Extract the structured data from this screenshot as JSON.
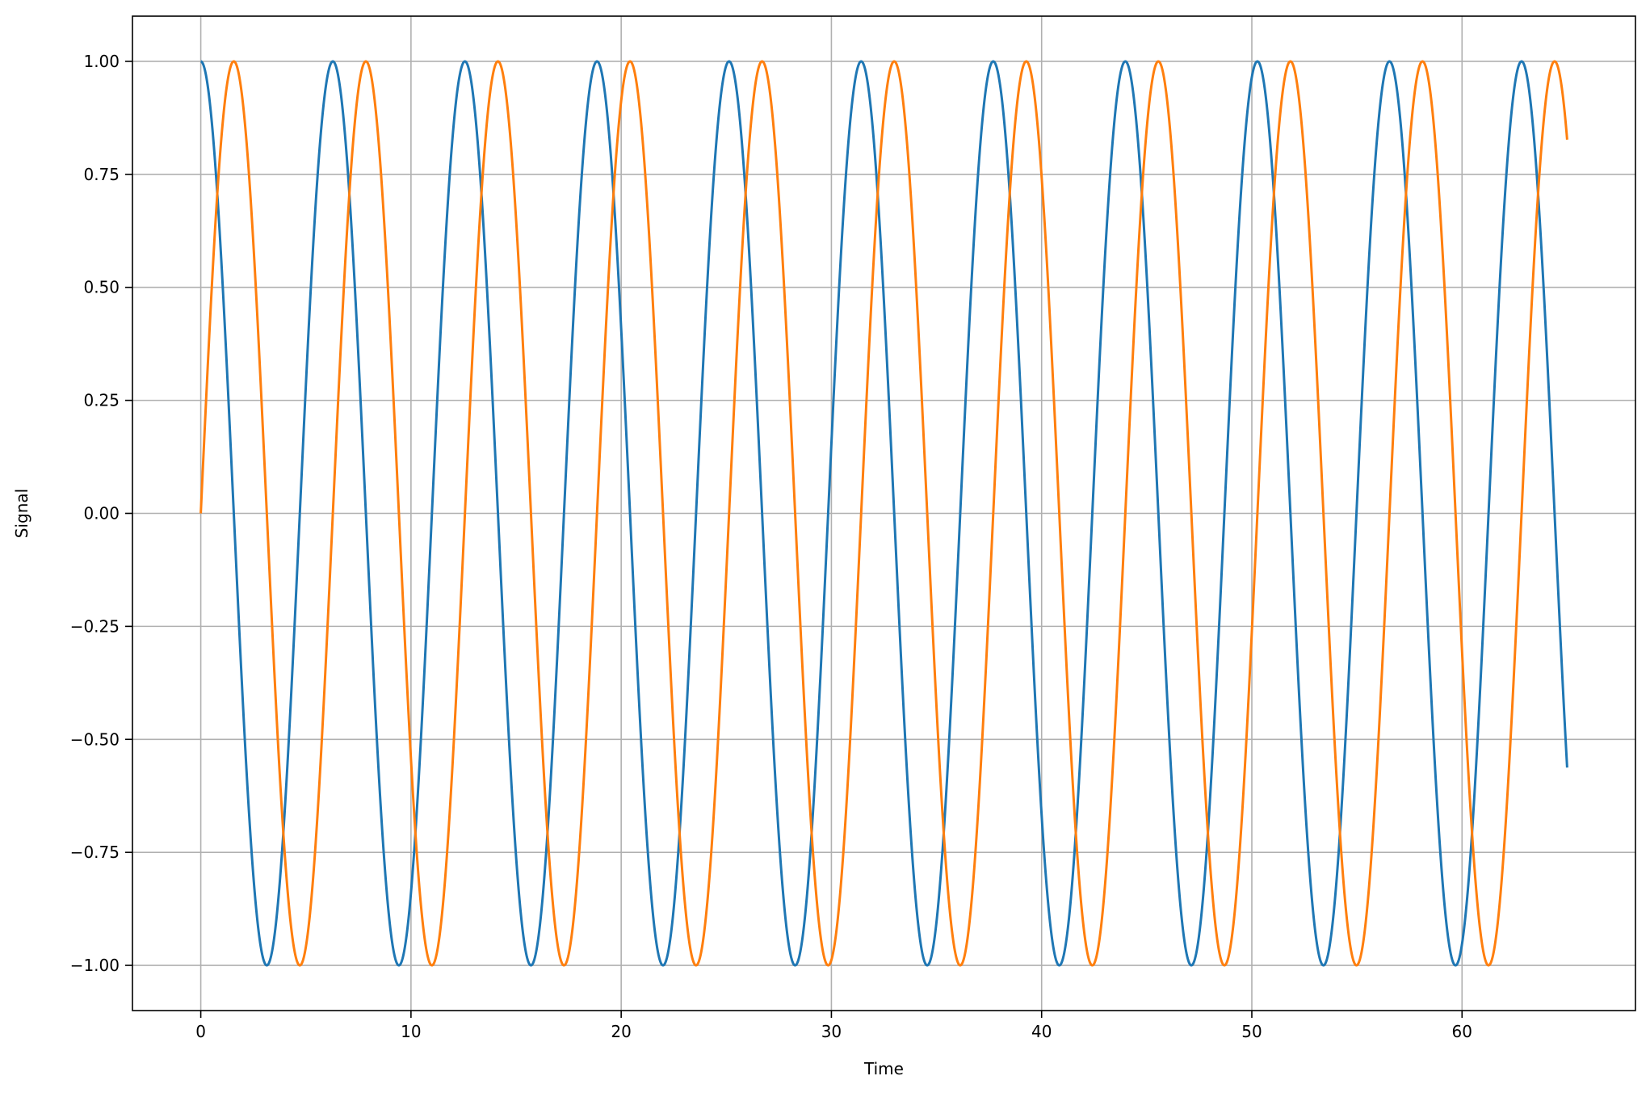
{
  "chart_data": {
    "type": "line",
    "title": "",
    "xlabel": "Time",
    "ylabel": "Signal",
    "xlim": [
      -3.25,
      68.25
    ],
    "ylim": [
      -1.1,
      1.1
    ],
    "x_ticks": [
      0,
      10,
      20,
      30,
      40,
      50,
      60
    ],
    "y_ticks": [
      1.0,
      0.75,
      0.5,
      0.25,
      0.0,
      -0.25,
      -0.5,
      -0.75,
      -1.0
    ],
    "x_tick_labels": [
      "0",
      "10",
      "20",
      "30",
      "40",
      "50",
      "60"
    ],
    "y_tick_labels": [
      "1.00",
      "0.75",
      "0.50",
      "0.25",
      "0.00",
      "−0.25",
      "−0.50",
      "−0.75",
      "−1.00"
    ],
    "grid": true,
    "legend": "none",
    "series": [
      {
        "function": "cos(x)",
        "color": "#1f77b4",
        "x_range": [
          0,
          65
        ],
        "points": [
          [
            0,
            1.0
          ],
          [
            3.14,
            -1.0
          ],
          [
            6.28,
            1.0
          ],
          [
            9.42,
            -1.0
          ],
          [
            12.57,
            1.0
          ],
          [
            15.71,
            -1.0
          ],
          [
            18.85,
            1.0
          ],
          [
            21.99,
            -1.0
          ],
          [
            25.13,
            1.0
          ],
          [
            28.27,
            -1.0
          ],
          [
            31.42,
            1.0
          ],
          [
            34.56,
            -1.0
          ],
          [
            37.7,
            1.0
          ],
          [
            40.84,
            -1.0
          ],
          [
            43.98,
            1.0
          ],
          [
            47.12,
            -1.0
          ],
          [
            50.27,
            1.0
          ],
          [
            53.41,
            -1.0
          ],
          [
            56.55,
            1.0
          ],
          [
            59.69,
            -1.0
          ],
          [
            62.83,
            1.0
          ],
          [
            65.0,
            -0.56
          ]
        ]
      },
      {
        "function": "sin(x)",
        "color": "#ff7f0e",
        "x_range": [
          0,
          65
        ],
        "points": [
          [
            0,
            0.0
          ],
          [
            1.57,
            1.0
          ],
          [
            4.71,
            -1.0
          ],
          [
            7.85,
            1.0
          ],
          [
            11.0,
            -1.0
          ],
          [
            14.14,
            1.0
          ],
          [
            17.28,
            -1.0
          ],
          [
            20.42,
            1.0
          ],
          [
            23.56,
            -1.0
          ],
          [
            26.7,
            1.0
          ],
          [
            29.85,
            -1.0
          ],
          [
            32.99,
            1.0
          ],
          [
            36.13,
            -1.0
          ],
          [
            39.27,
            1.0
          ],
          [
            42.41,
            -1.0
          ],
          [
            45.55,
            1.0
          ],
          [
            48.69,
            -1.0
          ],
          [
            51.84,
            1.0
          ],
          [
            54.98,
            -1.0
          ],
          [
            58.12,
            1.0
          ],
          [
            61.26,
            -1.0
          ],
          [
            64.4,
            1.0
          ],
          [
            65.0,
            0.83
          ]
        ]
      }
    ]
  },
  "colors": {
    "grid": "#b0b0b0",
    "axes": "#000000",
    "background": "#ffffff"
  }
}
